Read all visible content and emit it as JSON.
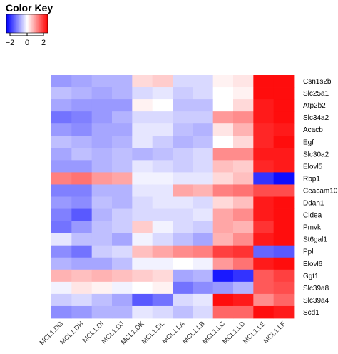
{
  "color_key": {
    "title": "Color Key",
    "ticks": [
      "−2",
      "0",
      "2"
    ],
    "low_color": "#0000ff",
    "mid_color": "#ffffff",
    "high_color": "#ff0000"
  },
  "chart_data": {
    "type": "heatmap",
    "title": "",
    "xlabel": "",
    "ylabel": "",
    "color_range": [
      -2,
      2
    ],
    "columns": [
      "MCL1.DG",
      "MCL1.DH",
      "MCL1.DI",
      "MCL1.DJ",
      "MCL1.DK",
      "MCL1.DL",
      "MCL1.LA",
      "MCL1.LB",
      "MCL1.LC",
      "MCL1.LD",
      "MCL1.LE",
      "MCL1.LF"
    ],
    "rows": [
      "Csn1s2b",
      "Slc25a1",
      "Atp2b2",
      "Slc34a2",
      "Acacb",
      "Egf",
      "Slc30a2",
      "Elovl5",
      "Rbp1",
      "Ceacam10",
      "Ddah1",
      "Cidea",
      "Pmvk",
      "St6gal1",
      "Ppl",
      "Elovl6",
      "Ggt1",
      "Slc39a8",
      "Slc39a4",
      "Scd1"
    ],
    "values": [
      [
        -0.8,
        -0.7,
        -0.6,
        -0.6,
        0.3,
        0.4,
        -0.3,
        -0.3,
        0.1,
        0.2,
        1.9,
        1.9
      ],
      [
        -0.5,
        -0.6,
        -0.7,
        -0.6,
        -0.3,
        -0.2,
        -0.4,
        -0.3,
        0.0,
        0.1,
        1.9,
        1.9
      ],
      [
        -0.7,
        -0.8,
        -0.8,
        -0.8,
        0.1,
        0.0,
        -0.5,
        -0.5,
        0.0,
        0.3,
        1.8,
        1.9
      ],
      [
        -1.1,
        -1.0,
        -0.8,
        -0.6,
        -0.3,
        -0.3,
        -0.4,
        -0.4,
        0.8,
        0.9,
        1.8,
        1.9
      ],
      [
        -0.8,
        -0.9,
        -0.7,
        -0.7,
        -0.2,
        -0.2,
        -0.5,
        -0.6,
        0.2,
        0.6,
        1.7,
        1.8
      ],
      [
        -0.5,
        -0.6,
        -0.7,
        -0.6,
        -0.2,
        -0.4,
        -0.6,
        -0.5,
        0.0,
        0.3,
        1.7,
        1.9
      ],
      [
        -0.7,
        -0.5,
        -0.6,
        -0.5,
        -0.6,
        -0.5,
        -0.4,
        -0.3,
        0.9,
        0.9,
        1.8,
        1.8
      ],
      [
        -0.8,
        -0.8,
        -0.6,
        -0.5,
        -0.2,
        -0.3,
        -0.4,
        -0.3,
        0.5,
        0.4,
        1.7,
        1.8
      ],
      [
        1.0,
        1.1,
        0.8,
        0.7,
        -0.1,
        -0.1,
        -0.2,
        -0.2,
        0.3,
        0.5,
        -1.6,
        -1.9
      ],
      [
        -1.0,
        -1.0,
        -0.6,
        -0.6,
        -0.2,
        -0.2,
        0.7,
        0.6,
        1.0,
        1.1,
        1.4,
        1.4
      ],
      [
        -0.8,
        -0.9,
        -0.5,
        -0.6,
        -0.3,
        -0.2,
        -0.2,
        -0.3,
        0.3,
        0.5,
        1.8,
        1.9
      ],
      [
        -1.0,
        -1.3,
        -0.6,
        -0.4,
        -0.3,
        -0.3,
        -0.3,
        -0.2,
        0.7,
        0.9,
        1.8,
        1.9
      ],
      [
        -1.1,
        -0.8,
        -0.5,
        -0.4,
        0.4,
        -0.1,
        -0.3,
        -0.4,
        0.7,
        0.6,
        1.6,
        1.9
      ],
      [
        -0.2,
        -0.5,
        -0.5,
        -0.7,
        -0.1,
        -0.3,
        -0.5,
        -0.7,
        0.6,
        0.9,
        1.8,
        1.9
      ],
      [
        -0.9,
        -1.1,
        -0.4,
        -0.3,
        0.5,
        0.7,
        0.9,
        1.0,
        1.5,
        1.6,
        -1.2,
        -1.3
      ],
      [
        -0.6,
        -0.7,
        -0.7,
        -0.5,
        -0.1,
        -0.1,
        0.0,
        -0.1,
        0.8,
        1.1,
        1.8,
        1.9
      ],
      [
        0.6,
        0.5,
        0.6,
        0.5,
        0.4,
        0.3,
        -0.7,
        -0.6,
        -1.8,
        -1.6,
        1.3,
        1.5
      ],
      [
        -0.1,
        0.2,
        0.1,
        -0.1,
        0.0,
        0.1,
        -1.1,
        -0.9,
        -0.8,
        -0.6,
        1.3,
        1.4
      ],
      [
        -0.4,
        -0.3,
        -0.5,
        -0.7,
        -1.3,
        -1.1,
        -0.3,
        -0.2,
        1.9,
        1.8,
        0.9,
        1.2
      ],
      [
        -0.9,
        -0.8,
        -0.6,
        -0.6,
        -0.2,
        -0.3,
        -0.5,
        -0.3,
        1.2,
        1.2,
        1.9,
        1.8
      ]
    ]
  }
}
